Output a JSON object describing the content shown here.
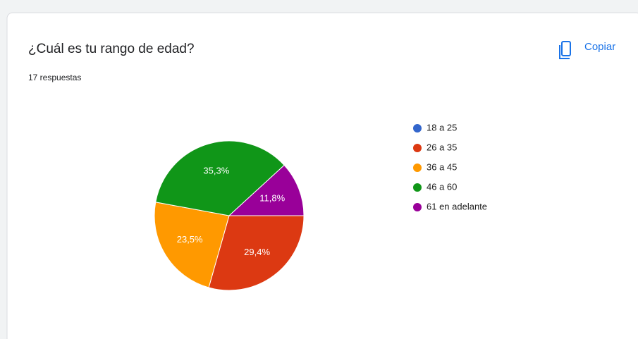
{
  "chart_data": {
    "type": "pie",
    "title": "¿Cuál es tu rango de edad?",
    "subtitle": "17 respuestas",
    "copy_button": "Copiar",
    "categories": [
      "18 a 25",
      "26 a 35",
      "36 a 45",
      "46 a 60",
      "61 en adelante"
    ],
    "values": [
      0,
      29.4,
      23.5,
      35.3,
      11.8
    ],
    "value_labels": [
      null,
      "29,4%",
      "23,5%",
      "35,3%",
      "11,8%"
    ],
    "colors": [
      "#3366cc",
      "#dc3912",
      "#ff9900",
      "#109618",
      "#990099"
    ],
    "legend": "right"
  }
}
